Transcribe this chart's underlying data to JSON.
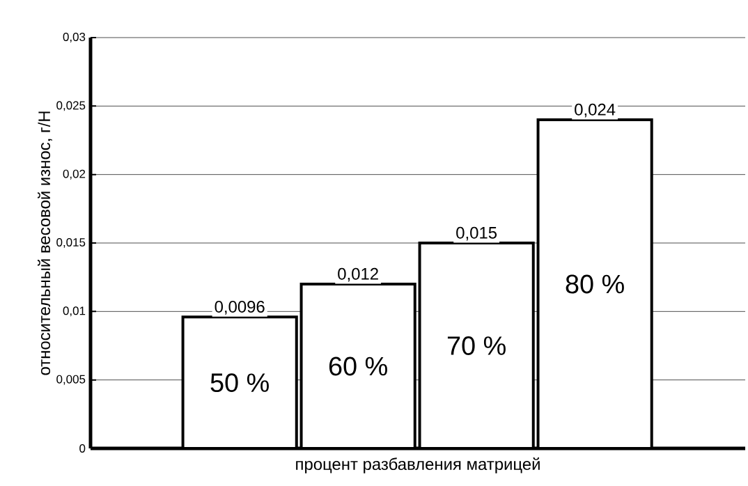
{
  "chart_data": {
    "type": "bar",
    "xlabel": "процент  разбавления  матрицей",
    "ylabel": "относительный  весовой  износ,  г/Н",
    "categories": [
      "50 %",
      "60 %",
      "70 %",
      "80 %"
    ],
    "values": [
      0.0096,
      0.012,
      0.015,
      0.024
    ],
    "value_labels": [
      "0,0096",
      "0,012",
      "0,015",
      "0,024"
    ],
    "color": "#ffffff",
    "ylim": [
      0,
      0.03
    ],
    "yticks": [
      {
        "value": 0,
        "label": "0"
      },
      {
        "value": 0.005,
        "label": "0,005"
      },
      {
        "value": 0.01,
        "label": "0,01"
      },
      {
        "value": 0.015,
        "label": "0,015"
      },
      {
        "value": 0.02,
        "label": "0,02"
      },
      {
        "value": 0.025,
        "label": "0,025"
      },
      {
        "value": 0.03,
        "label": "0,03"
      }
    ],
    "grid": "y"
  }
}
